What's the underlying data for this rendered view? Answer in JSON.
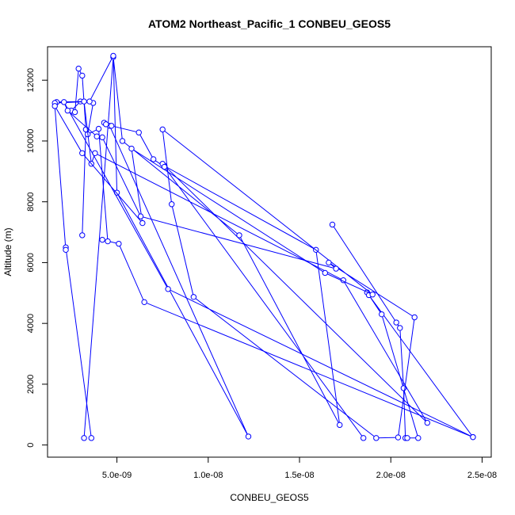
{
  "chart_data": {
    "type": "line",
    "title": "ATOM2 Northeast_Pacific_1 CONBEU_GEOS5",
    "xlabel": "CONBEU_GEOS5",
    "ylabel": "Altitude (m)",
    "xlim": [
      1.2e-09,
      2.55e-08
    ],
    "ylim": [
      -400,
      13100
    ],
    "x_ticks": [
      5e-09,
      1e-08,
      1.5e-08,
      2e-08,
      2.5e-08
    ],
    "x_tick_labels": [
      "5.0e-09",
      "1.0e-08",
      "1.5e-08",
      "2.0e-08",
      "2.5e-08"
    ],
    "y_ticks": [
      0,
      2000,
      4000,
      6000,
      8000,
      10000,
      12000
    ],
    "y_tick_labels": [
      "0",
      "2000",
      "4000",
      "6000",
      "8000",
      "10000",
      "12000"
    ],
    "color": "#0000ff",
    "grid": false,
    "series": [
      {
        "x": [
          1.68e-08,
          2.03e-08,
          2.05e-08,
          2.07e-08,
          2.08e-08,
          2.09e-08,
          2.15e-08,
          1.95e-08,
          1.87e-08,
          1.88e-08,
          2.45e-08,
          6.5e-09,
          5.1e-09,
          4.2e-09,
          4.5e-09,
          4e-09,
          3.4e-09,
          3.7e-09,
          3e-09,
          2.5e-09,
          2.7e-09,
          2.9e-09,
          3.1e-09,
          3.3e-09,
          3.1e-09
        ],
        "y": [
          7250,
          4030,
          3850,
          1870,
          230,
          230,
          230,
          4300,
          5020,
          4930,
          260,
          4700,
          6620,
          6750,
          6700,
          10400,
          10220,
          11250,
          11300,
          11000,
          10950,
          12380,
          12150,
          10380,
          6900
        ]
      },
      {
        "x": [
          3.2e-09,
          4.8e-09,
          5.3e-09,
          1.17e-08,
          1.72e-08,
          1.59e-08,
          7.6e-09,
          7.5e-09,
          2.2e-08,
          1.74e-08,
          3.8e-09,
          3.6e-09,
          3.2e-09,
          1.7e-09,
          1.6e-09,
          3.5e-09,
          4.8e-09,
          5e-09,
          1.22e-08,
          4.6e-09,
          4.3e-09,
          4.4e-09,
          4.7e-09,
          6.2e-09,
          7e-09,
          7.6e-09,
          1.85e-08
        ],
        "y": [
          230,
          12760,
          10000,
          6900,
          660,
          6420,
          9180,
          9250,
          730,
          5420,
          9600,
          9250,
          11300,
          11280,
          11250,
          11300,
          12800,
          8300,
          280,
          10500,
          10600,
          10550,
          10500,
          10280,
          9400,
          9150,
          230
        ]
      },
      {
        "x": [
          3.6e-09,
          2.2e-09,
          2.2e-09,
          1.6e-09,
          3.1e-09,
          6.4e-09,
          5.8e-09,
          1.64e-08,
          1.9e-08,
          7.5e-09,
          8e-09,
          9.2e-09,
          1.92e-08,
          2.04e-08,
          2.13e-08,
          1.66e-08,
          1.7e-08,
          6.3e-09,
          4.2e-09,
          3.9e-09,
          2.3e-09,
          2.1e-09,
          7.8e-09,
          2.45e-08
        ],
        "y": [
          230,
          6500,
          6420,
          11150,
          9600,
          7300,
          9750,
          5660,
          4950,
          10380,
          7920,
          4870,
          230,
          250,
          4200,
          6000,
          5800,
          7520,
          10120,
          10150,
          11000,
          11280,
          5130,
          260
        ]
      }
    ]
  }
}
